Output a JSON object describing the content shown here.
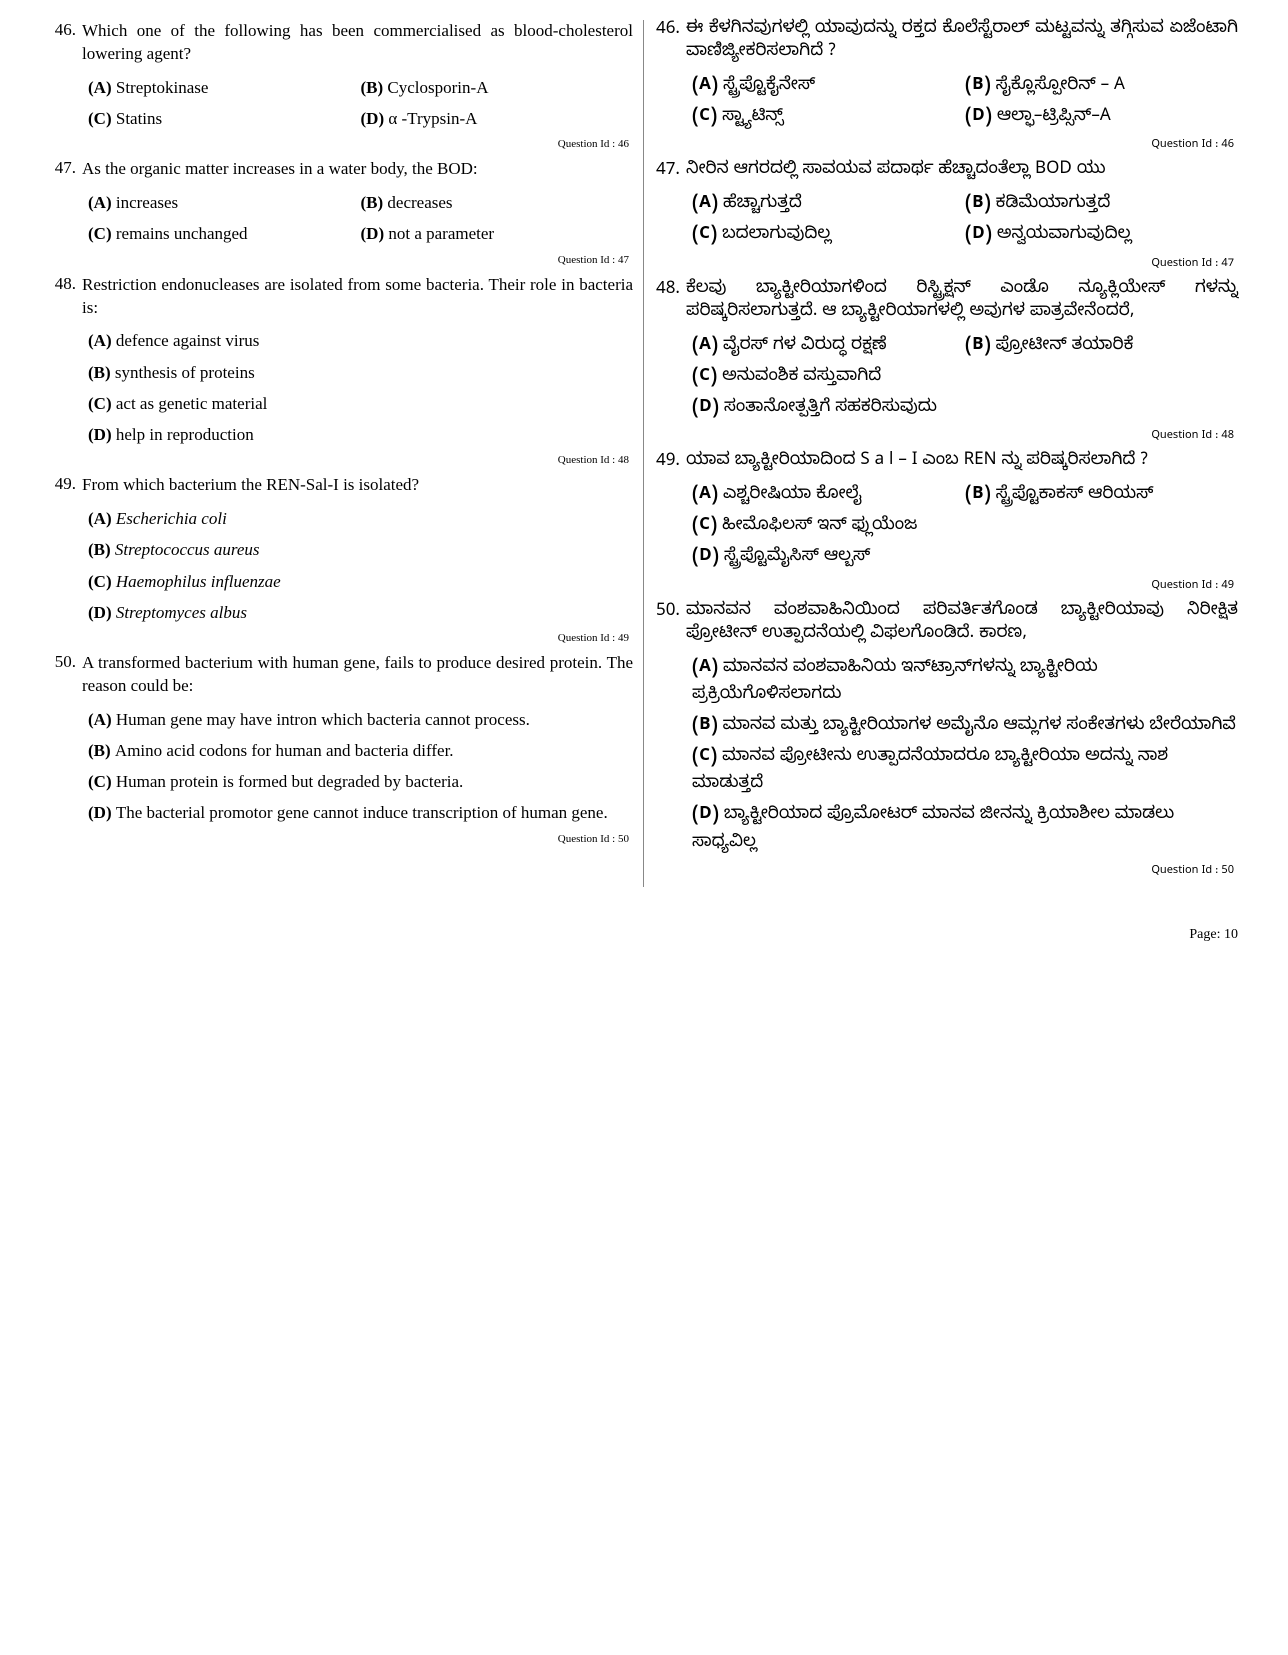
{
  "page_number": "Page: 10",
  "left": {
    "questions": [
      {
        "number": "46.",
        "text": "Which one of the following has been commercialised as blood-cholesterol lowering agent?",
        "options_layout": "2col",
        "options": [
          {
            "label": "(A)",
            "text": "Streptokinase",
            "italic": false
          },
          {
            "label": "(B)",
            "text": "Cyclosporin-A",
            "italic": false
          },
          {
            "label": "(C)",
            "text": "Statins",
            "italic": false
          },
          {
            "label": "(D)",
            "text": "α -Trypsin-A",
            "italic": false
          }
        ],
        "qid": "Question Id : 46"
      },
      {
        "number": "47.",
        "text": "As the organic matter increases in a water body, the BOD:",
        "options_layout": "2col",
        "options": [
          {
            "label": "(A)",
            "text": "increases",
            "italic": false
          },
          {
            "label": "(B)",
            "text": "decreases",
            "italic": false
          },
          {
            "label": "(C)",
            "text": "remains unchanged",
            "italic": false
          },
          {
            "label": "(D)",
            "text": "not a parameter",
            "italic": false
          }
        ],
        "qid": "Question Id : 47"
      },
      {
        "number": "48.",
        "text": "Restriction endonucleases are isolated from some bacteria. Their role in bacteria is:",
        "options_layout": "1col",
        "options": [
          {
            "label": "(A)",
            "text": "defence against virus",
            "italic": false
          },
          {
            "label": "(B)",
            "text": "synthesis of proteins",
            "italic": false
          },
          {
            "label": "(C)",
            "text": "act as genetic material",
            "italic": false
          },
          {
            "label": "(D)",
            "text": "help in reproduction",
            "italic": false
          }
        ],
        "qid": "Question Id : 48"
      },
      {
        "number": "49.",
        "text": "From which bacterium the REN-Sal-I is isolated?",
        "options_layout": "1col",
        "options": [
          {
            "label": "(A)",
            "text": "Escherichia coli",
            "italic": true
          },
          {
            "label": "(B)",
            "text": "Streptococcus aureus",
            "italic": true
          },
          {
            "label": "(C)",
            "text": "Haemophilus influenzae",
            "italic": true
          },
          {
            "label": "(D)",
            "text": "Streptomyces albus",
            "italic": true
          }
        ],
        "qid": "Question Id : 49"
      },
      {
        "number": "50.",
        "text": "A transformed bacterium with human gene, fails to produce desired protein. The reason could be:",
        "options_layout": "1col",
        "options": [
          {
            "label": "(A)",
            "text": "Human gene may have intron which bacteria cannot process.",
            "italic": false
          },
          {
            "label": "(B)",
            "text": "Amino acid codons for human and bacteria differ.",
            "italic": false
          },
          {
            "label": "(C)",
            "text": "Human protein is formed but degraded by bacteria.",
            "italic": false
          },
          {
            "label": "(D)",
            "text": "The bacterial promotor gene cannot induce transcription of human gene.",
            "italic": false
          }
        ],
        "qid": "Question Id : 50"
      }
    ]
  },
  "right": {
    "questions": [
      {
        "number": "46.",
        "text": "ಈ ಕೆಳಗಿನವುಗಳಲ್ಲಿ ಯಾವುದನ್ನು ರಕ್ತದ ಕೊಲೆಸ್ಟೆರಾಲ್ ಮಟ್ಟವನ್ನು ತಗ್ಗಿಸುವ ಏಜೆಂಟಾಗಿ ವಾಣಿಜ್ಯೀಕರಿಸಲಾಗಿದೆ ?",
        "options_layout": "2col",
        "options": [
          {
            "label": "(A)",
            "text": "ಸ್ಟ್ರೆಪ್ಟೊಕೈನೇಸ್",
            "italic": false
          },
          {
            "label": "(B)",
            "text": "ಸೈಕ್ಲೊಸ್ಪೋರಿನ್ – A",
            "italic": false
          },
          {
            "label": "(C)",
            "text": "ಸ್ಟ್ಯಾಟಿನ್ಸ್",
            "italic": false
          },
          {
            "label": "(D)",
            "text": "ಆಲ್ಫಾ–ಟ್ರಿಪ್ಸಿನ್–A",
            "italic": false
          }
        ],
        "qid": "Question Id : 46"
      },
      {
        "number": "47.",
        "text": "ನೀರಿನ ಆಗರದಲ್ಲಿ ಸಾವಯವ ಪದಾರ್ಥ ಹೆಚ್ಚಾದಂತೆಲ್ಲಾ BOD ಯು",
        "options_layout": "2col",
        "options": [
          {
            "label": "(A)",
            "text": "ಹೆಚ್ಚಾಗುತ್ತದೆ",
            "italic": false
          },
          {
            "label": "(B)",
            "text": "ಕಡಿಮೆಯಾಗುತ್ತದೆ",
            "italic": false
          },
          {
            "label": "(C)",
            "text": "ಬದಲಾಗುವುದಿಲ್ಲ",
            "italic": false
          },
          {
            "label": "(D)",
            "text": "ಅನ್ವಯವಾಗುವುದಿಲ್ಲ",
            "italic": false
          }
        ],
        "qid": "Question Id : 47"
      },
      {
        "number": "48.",
        "text": "ಕೆಲವು ಬ್ಯಾಕ್ಟೀರಿಯಾಗಳಿಂದ ರಿಸ್ಟ್ರಿಕ್ಷನ್ ಎಂಡೊ ನ್ಯೂಕ್ಲಿಯೇಸ್ ಗಳನ್ನು ಪರಿಷ್ಕರಿಸಲಾಗುತ್ತದೆ. ಆ ಬ್ಯಾಕ್ಟೀರಿಯಾಗಳಲ್ಲಿ ಅವುಗಳ ಪಾತ್ರವೇನೆಂದರೆ,",
        "options_layout": "2col-1col",
        "options": [
          {
            "label": "(A)",
            "text": "ವೈರಸ್ ಗಳ ವಿರುದ್ಧ ರಕ್ಷಣೆ",
            "italic": false
          },
          {
            "label": "(B)",
            "text": "ಪ್ರೋಟೀನ್ ತಯಾರಿಕೆ",
            "italic": false
          },
          {
            "label": "(C)",
            "text": "ಅನುವಂಶಿಕ ವಸ್ತುವಾಗಿದೆ",
            "italic": false
          },
          {
            "label": "(D)",
            "text": "ಸಂತಾನೋತ್ಪತ್ತಿಗೆ ಸಹಕರಿಸುವುದು",
            "italic": false
          }
        ],
        "qid": "Question Id : 48"
      },
      {
        "number": "49.",
        "text": "ಯಾವ ಬ್ಯಾಕ್ಟೀರಿಯಾದಿಂದ S a l – I ಎಂಬ REN ನ್ನು ಪರಿಷ್ಕರಿಸಲಾಗಿದೆ ?",
        "options_layout": "2col-1col",
        "options": [
          {
            "label": "(A)",
            "text": "ಎಶ್ಚರೀಷಿಯಾ ಕೋಲೈ",
            "italic": false
          },
          {
            "label": "(B)",
            "text": "ಸ್ಟ್ರೆಪ್ಟೊಕಾಕಸ್ ಆರಿಯಸ್",
            "italic": false
          },
          {
            "label": "(C)",
            "text": "ಹೀಮೊಫಿಲಸ್ ಇನ್ ಫ್ಲುಯೆಂಜ",
            "italic": false
          },
          {
            "label": "(D)",
            "text": "ಸ್ಟ್ರೆಪ್ಟೊಮೈಸಿಸ್ ಆಲ್ಬಸ್",
            "italic": false
          }
        ],
        "qid": "Question Id : 49"
      },
      {
        "number": "50.",
        "text": "ಮಾನವನ ವಂಶವಾಹಿನಿಯಿಂದ ಪರಿವರ್ತಿತಗೊಂಡ ಬ್ಯಾಕ್ಟೀರಿಯಾವು ನಿರೀಕ್ಷಿತ ಪ್ರೋಟೀನ್ ಉತ್ಪಾದನೆಯಲ್ಲಿ ವಿಫಲಗೊಂಡಿದೆ. ಕಾರಣ,",
        "options_layout": "1col",
        "options": [
          {
            "label": "(A)",
            "text": "ಮಾನವನ ವಂಶವಾಹಿನಿಯ ಇನ್‌ಟ್ರಾನ್‌ಗಳನ್ನು ಬ್ಯಾಕ್ಟೀರಿಯ ಪ್ರಕ್ರಿಯೆಗೊಳಿಸಲಾಗದು",
            "italic": false
          },
          {
            "label": "(B)",
            "text": "ಮಾನವ ಮತ್ತು ಬ್ಯಾಕ್ಟೀರಿಯಾಗಳ ಅಮೈನೊ ಆಮ್ಲಗಳ ಸಂಕೇತಗಳು ಬೇರೆಯಾಗಿವೆ",
            "italic": false
          },
          {
            "label": "(C)",
            "text": "ಮಾನವ ಪ್ರೋಟೀನು ಉತ್ಪಾದನೆಯಾದರೂ ಬ್ಯಾಕ್ಟೀರಿಯಾ ಅದನ್ನು ನಾಶ ಮಾಡುತ್ತದೆ",
            "italic": false
          },
          {
            "label": "(D)",
            "text": "ಬ್ಯಾಕ್ಟೀರಿಯಾದ ಪ್ರೊಮೋಟರ್ ಮಾನವ ಜೀನನ್ನು ಕ್ರಿಯಾಶೀಲ ಮಾಡಲು ಸಾಧ್ಯವಿಲ್ಲ",
            "italic": false
          }
        ],
        "qid": "Question Id : 50"
      }
    ]
  }
}
